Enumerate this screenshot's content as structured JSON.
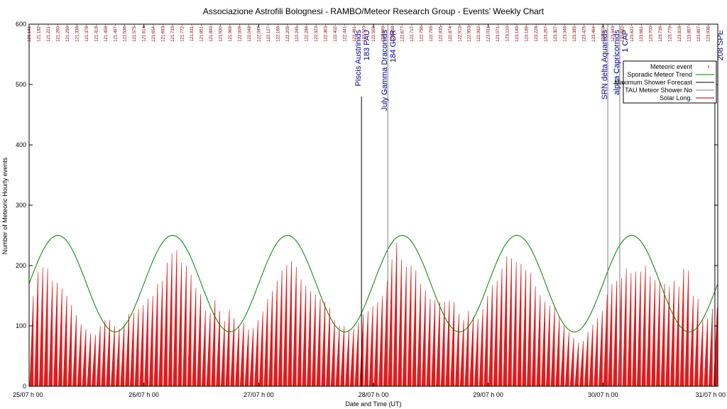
{
  "chart_data": {
    "type": "bar",
    "title": "Associazione Astrofili Bolognesi - RAMBO/Meteor Research Group - Events' Weekly Chart",
    "xlabel": "Date and Time (UT)",
    "ylabel": "Number of Meteoric Hourly events",
    "ylim": [
      0,
      600
    ],
    "yticks": [
      0,
      100,
      200,
      300,
      400,
      500,
      600
    ],
    "xlim_hours": [
      0,
      144
    ],
    "xticks": [
      {
        "hour": 0,
        "label": "25/07 h 00"
      },
      {
        "hour": 24,
        "label": "26/07 h 00"
      },
      {
        "hour": 48,
        "label": "27/07 h 00"
      },
      {
        "hour": 72,
        "label": "28/07 h 00"
      },
      {
        "hour": 96,
        "label": "29/07 h 00"
      },
      {
        "hour": 120,
        "label": "30/07 h 00"
      },
      {
        "hour": 144,
        "label": "31/07 h 00"
      }
    ],
    "hourly_counts": [
      150,
      190,
      197,
      195,
      175,
      172,
      162,
      150,
      135,
      118,
      103,
      95,
      88,
      85,
      100,
      110,
      110,
      100,
      95,
      103,
      120,
      122,
      128,
      135,
      145,
      150,
      170,
      175,
      205,
      220,
      226,
      205,
      200,
      185,
      163,
      153,
      125,
      122,
      143,
      125,
      108,
      127,
      113,
      100,
      106,
      94,
      97,
      110,
      124,
      145,
      158,
      175,
      192,
      201,
      208,
      198,
      177,
      167,
      158,
      152,
      145,
      140,
      130,
      110,
      100,
      100,
      92,
      96,
      105,
      120,
      125,
      133,
      140,
      150,
      175,
      210,
      238,
      210,
      198,
      200,
      192,
      170,
      160,
      145,
      143,
      140,
      140,
      142,
      140,
      120,
      110,
      125,
      115,
      112,
      128,
      150,
      168,
      175,
      195,
      215,
      212,
      205,
      203,
      193,
      188,
      166,
      151,
      140,
      134,
      130,
      115,
      100,
      90,
      80,
      72,
      75,
      90,
      102,
      112,
      125,
      152,
      170,
      175,
      180,
      195,
      188,
      190,
      190,
      200,
      183,
      176,
      172,
      170,
      165,
      175,
      165,
      195,
      192,
      150,
      145,
      110,
      113,
      128,
      130
    ],
    "series": [
      {
        "name": "Meteoric event",
        "color": "#e41a1c"
      },
      {
        "name": "Sporadic Meteor Trend",
        "color": "#008000",
        "trend": {
          "mean": 170,
          "amplitude": 80,
          "period_hours": 24,
          "peak_hour": 6
        }
      },
      {
        "name": "Maximum Shower Forecast",
        "color": "#000000"
      },
      {
        "name": "TAU Meteor Shower No",
        "color": "#808080"
      },
      {
        "name": "Solar Long.",
        "color": "#8b0000"
      }
    ],
    "legend": [
      "Meteoric event",
      "Sporadic Meteor Trend",
      "Maximum Shower Forecast",
      "TAU Meteor Shower No",
      "Solar Long."
    ],
    "legend_position": "top-right",
    "showers": [
      {
        "name": "Piscis Austrinids",
        "code": "183 PAU",
        "hour": 69.5,
        "style": "forecast"
      },
      {
        "name": "July Gamma Draconids",
        "code": "184 GDR",
        "hour": 75,
        "style": "tau"
      },
      {
        "name": "SRN delta Aquariids",
        "code": "",
        "hour": 121,
        "style": "tau"
      },
      {
        "name": "alpha Capricornids",
        "code": "1 CAP",
        "hour": 123.5,
        "style": "tau"
      },
      {
        "name": "",
        "code": "208 SPE",
        "hour": 143.4,
        "style": "forecast"
      }
    ],
    "solar_longitudes": [
      "121.141",
      "121.182",
      "121.221",
      "121.260",
      "121.299",
      "121.338",
      "121.378",
      "121.418",
      "121.458",
      "121.497",
      "121.536",
      "121.575",
      "121.614",
      "121.654",
      "121.693",
      "121.733",
      "121.772",
      "121.811",
      "121.851",
      "121.890",
      "121.930",
      "121.969",
      "122.009",
      "122.048",
      "122.087",
      "122.127",
      "122.166",
      "122.205",
      "122.245",
      "122.284",
      "122.323",
      "122.363",
      "122.402",
      "122.441",
      "122.481",
      "122.520",
      "122.559",
      "122.599",
      "122.638",
      "122.677",
      "122.717",
      "122.756",
      "122.795",
      "122.835",
      "122.874",
      "122.913",
      "122.953",
      "122.992",
      "123.031",
      "123.071",
      "123.110",
      "123.149",
      "123.189",
      "123.228",
      "123.267",
      "123.307",
      "123.346",
      "123.385",
      "123.425",
      "123.464",
      "123.503",
      "123.543",
      "123.582",
      "123.621",
      "123.661",
      "123.700",
      "123.739",
      "123.779",
      "123.818",
      "123.857",
      "123.897",
      "123.936"
    ]
  }
}
